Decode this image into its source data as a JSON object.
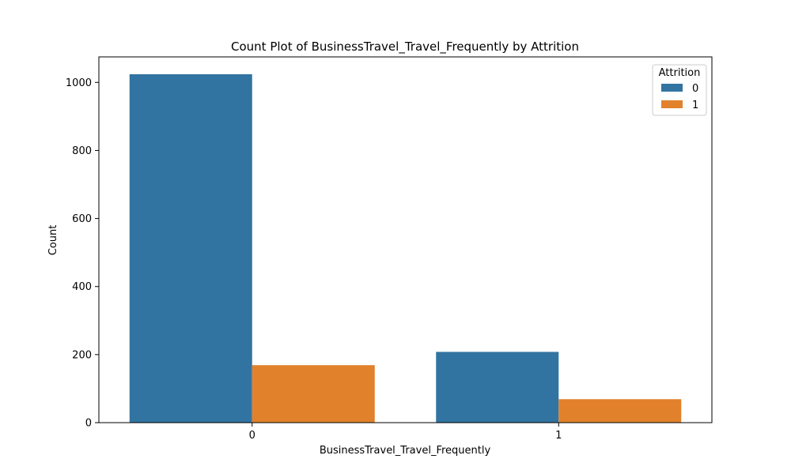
{
  "chart_data": {
    "type": "bar",
    "title": "Count Plot of BusinessTravel_Travel_Frequently by Attrition",
    "xlabel": "BusinessTravel_Travel_Frequently",
    "ylabel": "Count",
    "categories": [
      "0",
      "1"
    ],
    "ylim": [
      0,
      1075
    ],
    "yticks": [
      0,
      200,
      400,
      600,
      800,
      1000
    ],
    "legend": {
      "title": "Attrition",
      "placement": "top-right"
    },
    "series": [
      {
        "name": "0",
        "color": "#3274a1",
        "values": [
          1024,
          208
        ]
      },
      {
        "name": "1",
        "color": "#e1812c",
        "values": [
          169,
          69
        ]
      }
    ],
    "grid": false
  }
}
